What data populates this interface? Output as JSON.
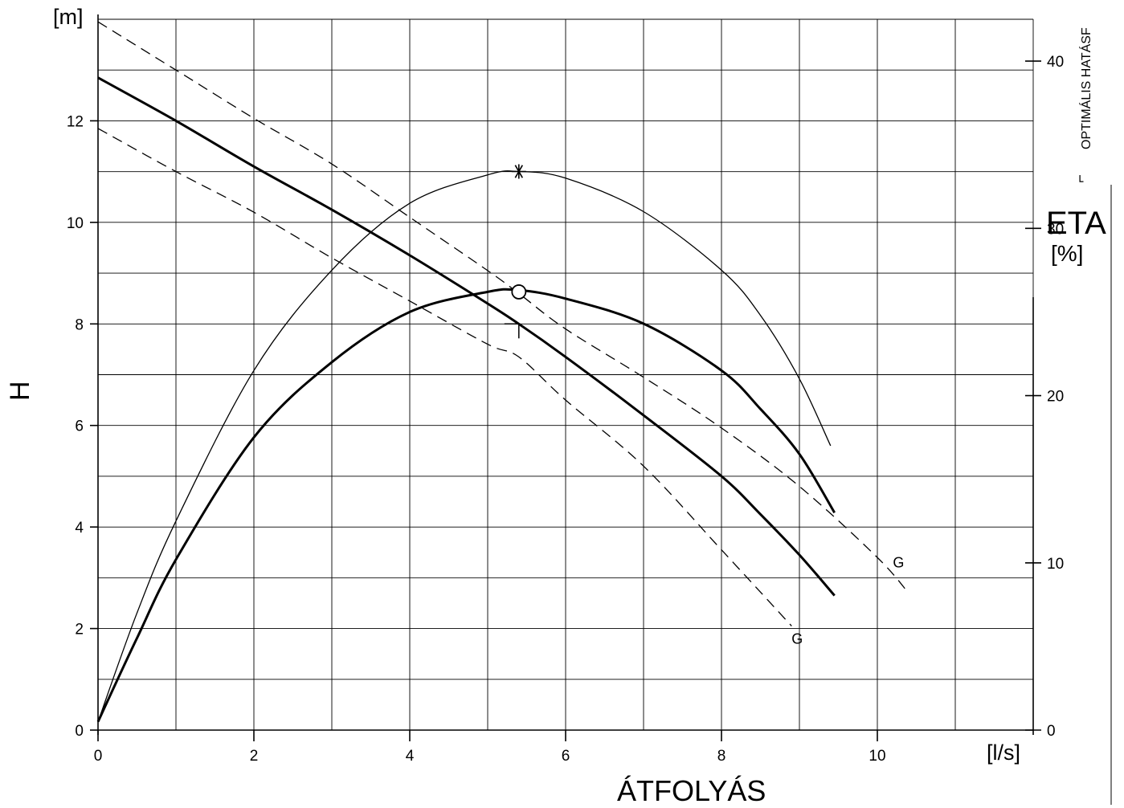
{
  "chart_data": {
    "type": "line",
    "title": "",
    "xlabel": "ÁTFOLYÁS",
    "xunit": "[l/s]",
    "ylabel": "H",
    "yunit": "[m]",
    "y2label": "ETA",
    "y2unit": "[%]",
    "side_note": "OPTIMÁLIS HATÁSF",
    "side_marker": "⌐",
    "xlim": [
      0,
      12
    ],
    "ylim": [
      0,
      14
    ],
    "y2lim": [
      0,
      42.5
    ],
    "grid": true,
    "x_ticks": [
      "0",
      "2",
      "4",
      "6",
      "8",
      "10"
    ],
    "y_ticks": [
      "0",
      "2",
      "4",
      "6",
      "8",
      "10",
      "12"
    ],
    "y2_ticks": [
      "0",
      "10",
      "20",
      "30",
      "40"
    ],
    "series": [
      {
        "axis": "left",
        "style": "thick",
        "x": [
          0,
          1,
          2,
          3,
          4,
          5,
          5.4,
          6,
          7,
          8,
          8.5,
          9,
          9.45
        ],
        "y": [
          12.85,
          12.0,
          11.1,
          10.25,
          9.35,
          8.4,
          8.0,
          7.35,
          6.2,
          5.0,
          4.25,
          3.45,
          2.65
        ]
      },
      {
        "axis": "left",
        "style": "dashed",
        "x": [
          0,
          1,
          2,
          3,
          4,
          5,
          5.4,
          6,
          7,
          8,
          9,
          10,
          10.4
        ],
        "y": [
          13.95,
          13.0,
          12.05,
          11.15,
          10.1,
          9.05,
          8.6,
          7.9,
          6.95,
          5.95,
          4.8,
          3.4,
          2.7
        ]
      },
      {
        "axis": "left",
        "style": "dashed",
        "x": [
          0,
          1,
          2,
          3,
          4,
          5,
          5.4,
          6,
          7,
          8,
          8.9
        ],
        "y": [
          11.85,
          11.0,
          10.2,
          9.3,
          8.45,
          7.6,
          7.35,
          6.5,
          5.2,
          3.55,
          2.05
        ]
      },
      {
        "axis": "right",
        "style": "thin",
        "x": [
          0,
          0.5,
          1,
          2,
          3,
          4,
          5,
          5.4,
          6,
          7,
          8,
          8.5,
          9,
          9.4
        ],
        "y": [
          0.5,
          7.0,
          12.5,
          21.5,
          27.5,
          31.5,
          33.2,
          33.4,
          33.0,
          31.0,
          27.5,
          24.8,
          21.0,
          17.0
        ]
      },
      {
        "axis": "right",
        "style": "thick",
        "x": [
          0,
          0.5,
          1,
          2,
          3,
          4,
          5,
          5.4,
          6,
          7,
          8,
          8.5,
          9,
          9.45
        ],
        "y": [
          0.5,
          5.5,
          10.2,
          17.5,
          22.0,
          25.0,
          26.2,
          26.3,
          25.8,
          24.3,
          21.5,
          19.2,
          16.5,
          13.0
        ]
      }
    ],
    "markers": [
      {
        "axis": "left",
        "symbol": "T",
        "x": 5.4,
        "y": 8.0
      },
      {
        "axis": "right",
        "symbol": "asterisk",
        "x": 5.4,
        "y": 33.4
      },
      {
        "axis": "right",
        "symbol": "circle",
        "x": 5.4,
        "y": 26.2
      }
    ],
    "annotations": [
      {
        "text": "G",
        "x": 10.2,
        "y": 3.2
      },
      {
        "text": "G",
        "x": 8.9,
        "y": 1.7
      }
    ]
  }
}
